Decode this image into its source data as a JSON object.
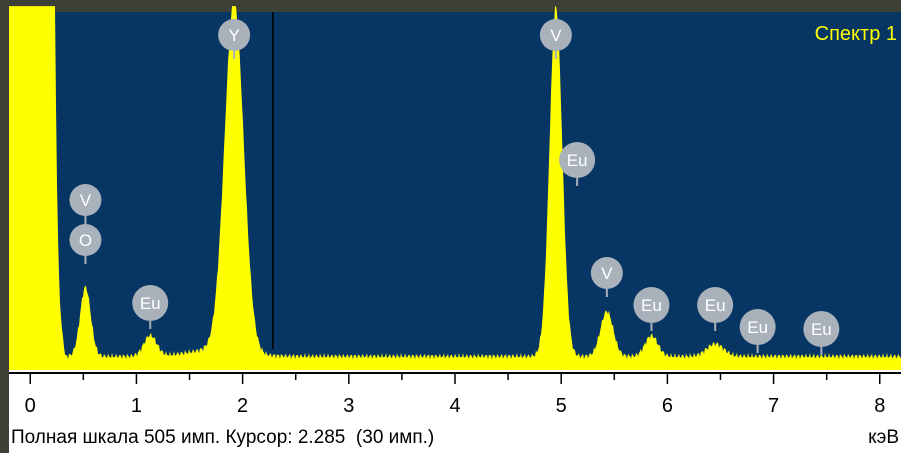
{
  "chart_data": {
    "type": "line",
    "title": "Спектр 1",
    "xlabel": "кэВ",
    "xlim": [
      -0.2,
      8.2
    ],
    "x_ticks": [
      0,
      1,
      2,
      3,
      4,
      5,
      6,
      7,
      8
    ],
    "full_scale_counts": 505,
    "cursor_keV": 2.285,
    "cursor_counts": 30,
    "fill_color": "#ffff00",
    "background_color": "#073564",
    "baseline_counts": 20,
    "peaks": [
      {
        "element": "O",
        "x": 0.52,
        "y": 100,
        "width": 0.05
      },
      {
        "element": "Eu",
        "x": 1.13,
        "y": 30,
        "width": 0.06
      },
      {
        "element": "Y",
        "x": 1.92,
        "y": 505,
        "width": 0.09
      },
      {
        "element": "V",
        "x": 4.95,
        "y": 505,
        "width": 0.06
      },
      {
        "element": "V",
        "x": 5.43,
        "y": 65,
        "width": 0.06
      },
      {
        "element": "Eu",
        "x": 5.85,
        "y": 30,
        "width": 0.06
      },
      {
        "element": "Eu",
        "x": 6.45,
        "y": 18,
        "width": 0.08
      }
    ],
    "labels": [
      {
        "text": "V",
        "x": 0.52
      },
      {
        "text": "O",
        "x": 0.52
      },
      {
        "text": "Eu",
        "x": 1.13
      },
      {
        "text": "Y",
        "x": 1.92
      },
      {
        "text": "V",
        "x": 4.95
      },
      {
        "text": "Eu",
        "x": 5.15
      },
      {
        "text": "V",
        "x": 5.43
      },
      {
        "text": "Eu",
        "x": 5.85
      },
      {
        "text": "Eu",
        "x": 6.45
      },
      {
        "text": "Eu",
        "x": 6.85
      },
      {
        "text": "Eu",
        "x": 7.45
      }
    ]
  },
  "status": {
    "text": "Полная шкала 505 имп. Курсор: 2.285  (30 имп.)",
    "unit": "кэВ"
  }
}
